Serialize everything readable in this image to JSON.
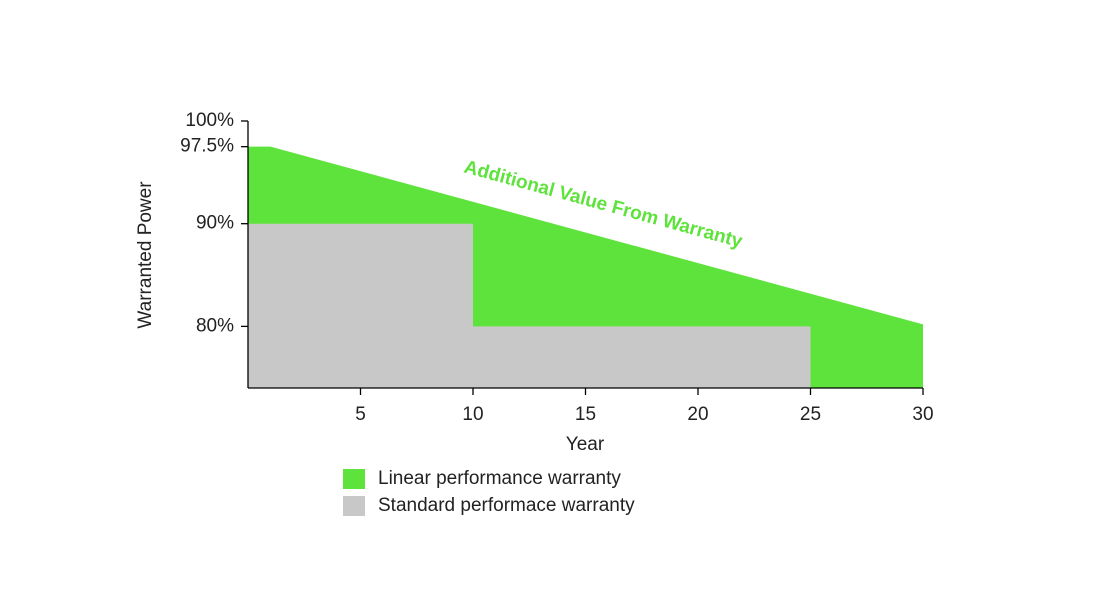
{
  "chart_data": {
    "type": "area",
    "xlabel": "Year",
    "ylabel": "Warranted Power",
    "annotation": "Additional Value From Warranty",
    "xlim": [
      0,
      30
    ],
    "xticks": [
      5,
      10,
      15,
      20,
      25,
      30
    ],
    "ylim": [
      74,
      100
    ],
    "yticks": [
      {
        "value": 80,
        "label": "80%"
      },
      {
        "value": 90,
        "label": "90%"
      },
      {
        "value": 97.5,
        "label": "97.5%"
      },
      {
        "value": 100,
        "label": "100%"
      }
    ],
    "grid": false,
    "legend": "bottom",
    "series": [
      {
        "name": "Linear performance warranty",
        "color": "#5ee33c",
        "x": [
          0,
          1,
          30
        ],
        "values": [
          97.5,
          97.5,
          80.2
        ]
      },
      {
        "name": "Standard performace warranty",
        "color": "#c8c8c8",
        "x": [
          0,
          10,
          10,
          25
        ],
        "values": [
          90,
          90,
          80,
          80
        ]
      }
    ]
  }
}
